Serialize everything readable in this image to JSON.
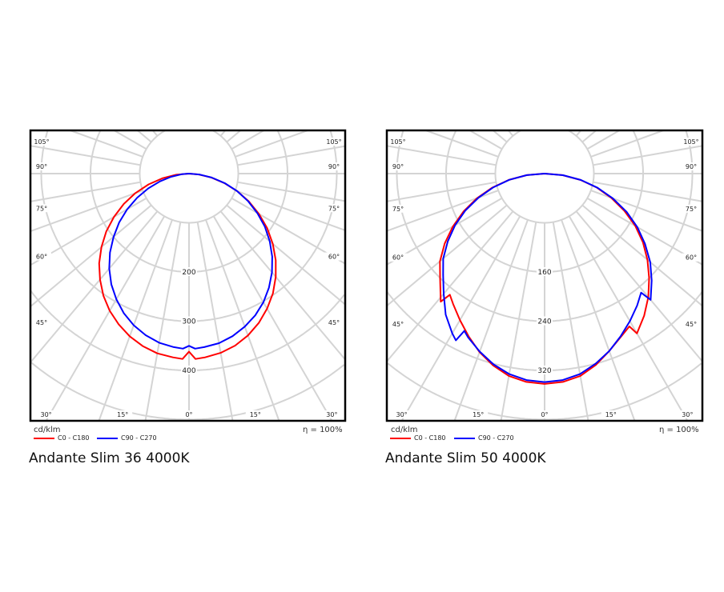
{
  "chart_data": [
    {
      "type": "polar",
      "title": "Andante Slim 36 4000K",
      "unit_label": "cd/klm",
      "efficiency_label": "η = 100%",
      "ring_step": 100,
      "ring_labels": [
        "200",
        "300",
        "400"
      ],
      "ring_label_values": [
        200,
        300,
        400
      ],
      "angle_labels": [
        "0°",
        "15°",
        "30°",
        "45°",
        "60°",
        "75°",
        "90°",
        "105°"
      ],
      "angle_label_values": [
        0,
        15,
        30,
        45,
        60,
        75,
        90,
        105
      ],
      "series": [
        {
          "name": "C0 - C180",
          "color": "#ff0000",
          "left": [
            [
              0,
              362
            ],
            [
              2,
              377
            ],
            [
              5,
              375
            ],
            [
              10,
              371
            ],
            [
              15,
              363
            ],
            [
              20,
              352
            ],
            [
              25,
              338
            ],
            [
              30,
              322
            ],
            [
              35,
              303
            ],
            [
              40,
              281
            ],
            [
              45,
              258
            ],
            [
              50,
              232
            ],
            [
              55,
              205
            ],
            [
              60,
              176
            ],
            [
              65,
              146
            ],
            [
              70,
              116
            ],
            [
              75,
              85
            ],
            [
              80,
              55
            ],
            [
              85,
              26
            ],
            [
              90,
              0
            ]
          ],
          "right": [
            [
              0,
              362
            ],
            [
              2,
              377
            ],
            [
              5,
              375
            ],
            [
              10,
              370
            ],
            [
              15,
              362
            ],
            [
              20,
              350
            ],
            [
              25,
              335
            ],
            [
              30,
              317
            ],
            [
              35,
              297
            ],
            [
              40,
              274
            ],
            [
              45,
              249
            ],
            [
              50,
              222
            ],
            [
              55,
              194
            ],
            [
              60,
              164
            ],
            [
              65,
              134
            ],
            [
              70,
              104
            ],
            [
              75,
              74
            ],
            [
              80,
              46
            ],
            [
              85,
              20
            ],
            [
              90,
              0
            ]
          ]
        },
        {
          "name": "C90 - C270",
          "color": "#0000ff",
          "left": [
            [
              0,
              350
            ],
            [
              2,
              356
            ],
            [
              5,
              354
            ],
            [
              10,
              349
            ],
            [
              15,
              340
            ],
            [
              20,
              328
            ],
            [
              25,
              313
            ],
            [
              30,
              295
            ],
            [
              35,
              275
            ],
            [
              40,
              252
            ],
            [
              45,
              227
            ],
            [
              50,
              200
            ],
            [
              55,
              173
            ],
            [
              60,
              145
            ],
            [
              65,
              116
            ],
            [
              70,
              88
            ],
            [
              75,
              61
            ],
            [
              80,
              37
            ],
            [
              85,
              15
            ],
            [
              90,
              0
            ]
          ],
          "right": [
            [
              0,
              350
            ],
            [
              2,
              356
            ],
            [
              5,
              354
            ],
            [
              10,
              350
            ],
            [
              15,
              342
            ],
            [
              20,
              331
            ],
            [
              25,
              318
            ],
            [
              30,
              302
            ],
            [
              35,
              283
            ],
            [
              40,
              262
            ],
            [
              45,
              239
            ],
            [
              50,
              214
            ],
            [
              55,
              188
            ],
            [
              60,
              160
            ],
            [
              65,
              132
            ],
            [
              70,
              104
            ],
            [
              75,
              75
            ],
            [
              80,
              47
            ],
            [
              85,
              21
            ],
            [
              90,
              0
            ]
          ]
        }
      ]
    },
    {
      "type": "polar",
      "title": "Andante Slim 50 4000K",
      "unit_label": "cd/klm",
      "efficiency_label": "η = 100%",
      "ring_step": 80,
      "ring_labels": [
        "160",
        "240",
        "320"
      ],
      "ring_label_values": [
        160,
        240,
        320
      ],
      "angle_labels": [
        "0°",
        "15°",
        "30°",
        "45°",
        "60°",
        "75°",
        "90°",
        "105°"
      ],
      "angle_label_values": [
        0,
        15,
        30,
        45,
        60,
        75,
        90,
        105
      ],
      "series": [
        {
          "name": "C0 - C180",
          "color": "#ff0000",
          "left": [
            [
              0,
              342
            ],
            [
              5,
              340
            ],
            [
              10,
              334
            ],
            [
              15,
              323
            ],
            [
              20,
              309
            ],
            [
              25,
              292
            ],
            [
              30,
              275
            ],
            [
              35,
              259
            ],
            [
              38,
              250
            ],
            [
              39,
              268
            ],
            [
              45,
              240
            ],
            [
              50,
              222
            ],
            [
              55,
              198
            ],
            [
              60,
              172
            ],
            [
              65,
              145
            ],
            [
              70,
              117
            ],
            [
              75,
              88
            ],
            [
              80,
              59
            ],
            [
              85,
              29
            ],
            [
              90,
              0
            ]
          ],
          "right": [
            [
              0,
              342
            ],
            [
              5,
              340
            ],
            [
              10,
              334
            ],
            [
              15,
              322
            ],
            [
              20,
              307
            ],
            [
              25,
              293
            ],
            [
              29,
              284
            ],
            [
              30,
              300
            ],
            [
              35,
              282
            ],
            [
              40,
              262
            ],
            [
              45,
              240
            ],
            [
              50,
              218
            ],
            [
              55,
              195
            ],
            [
              60,
              170
            ],
            [
              65,
              143
            ],
            [
              70,
              115
            ],
            [
              75,
              88
            ],
            [
              80,
              59
            ],
            [
              85,
              29
            ],
            [
              90,
              0
            ]
          ]
        },
        {
          "name": "C90 - C270",
          "color": "#0000ff",
          "left": [
            [
              0,
              339
            ],
            [
              5,
              337
            ],
            [
              10,
              331
            ],
            [
              15,
              321
            ],
            [
              20,
              308
            ],
            [
              25,
              294
            ],
            [
              27,
              287
            ],
            [
              28,
              307
            ],
            [
              30,
              300
            ],
            [
              35,
              280
            ],
            [
              40,
              255
            ],
            [
              45,
              233
            ],
            [
              50,
              215
            ],
            [
              55,
              192
            ],
            [
              60,
              168
            ],
            [
              65,
              142
            ],
            [
              70,
              114
            ],
            [
              75,
              86
            ],
            [
              80,
              58
            ],
            [
              85,
              29
            ],
            [
              90,
              0
            ]
          ],
          "right": [
            [
              0,
              339
            ],
            [
              5,
              337
            ],
            [
              10,
              331
            ],
            [
              15,
              320
            ],
            [
              20,
              307
            ],
            [
              25,
              292
            ],
            [
              30,
              277
            ],
            [
              35,
              262
            ],
            [
              39,
              249
            ],
            [
              40,
              268
            ],
            [
              45,
              246
            ],
            [
              50,
              224
            ],
            [
              55,
              199
            ],
            [
              60,
              174
            ],
            [
              65,
              147
            ],
            [
              70,
              118
            ],
            [
              75,
              89
            ],
            [
              80,
              60
            ],
            [
              85,
              30
            ],
            [
              90,
              0
            ]
          ]
        }
      ]
    }
  ]
}
